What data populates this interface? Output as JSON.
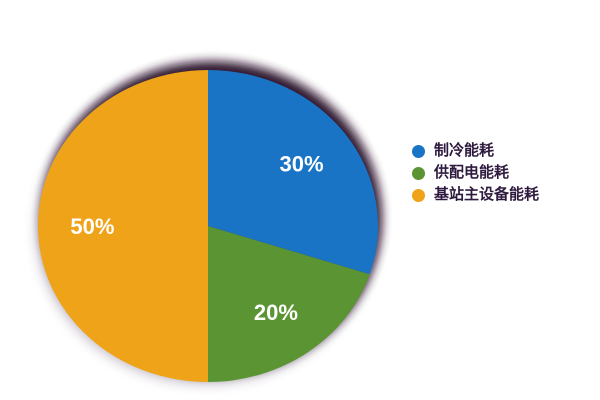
{
  "background": "#FFFFFF",
  "chart_data": {
    "type": "pie",
    "title": "",
    "categories": [
      "制冷能耗",
      "供配电能耗",
      "基站主设备能耗"
    ],
    "values": [
      30,
      20,
      50
    ],
    "segments": [
      {
        "label": "制冷能耗",
        "value": 30,
        "display": "30%",
        "color": "#1A74C6"
      },
      {
        "label": "供配电能耗",
        "value": 20,
        "display": "20%",
        "color": "#5A9433"
      },
      {
        "label": "基站主设备能耗",
        "value": 50,
        "display": "50%",
        "color": "#EFA318"
      }
    ],
    "start_angle_deg": 0,
    "direction": "clockwise",
    "legend_position": "right",
    "legend_text_color": "#2E1A3E",
    "value_label_color": "#FFFFFF",
    "shadow_color": "#260728",
    "shadow_soft_color": "#8A7B93"
  }
}
